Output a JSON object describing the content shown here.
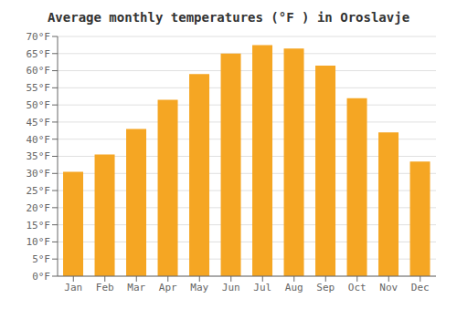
{
  "chart_data": {
    "type": "bar",
    "title": "Average monthly temperatures (°F ) in Oroslavje",
    "categories": [
      "Jan",
      "Feb",
      "Mar",
      "Apr",
      "May",
      "Jun",
      "Jul",
      "Aug",
      "Sep",
      "Oct",
      "Nov",
      "Dec"
    ],
    "values": [
      30.5,
      35.5,
      43,
      51.5,
      59,
      65,
      67.5,
      66.5,
      61.5,
      52,
      42,
      33.5
    ],
    "color": "#F5A623",
    "ylim": [
      0,
      70
    ],
    "yticks": [
      {
        "value": 0,
        "label": "0°F"
      },
      {
        "value": 5,
        "label": "5°F"
      },
      {
        "value": 10,
        "label": "10°F"
      },
      {
        "value": 15,
        "label": "15°F"
      },
      {
        "value": 20,
        "label": "20°F"
      },
      {
        "value": 25,
        "label": "25°F"
      },
      {
        "value": 30,
        "label": "30°F"
      },
      {
        "value": 35,
        "label": "35°F"
      },
      {
        "value": 40,
        "label": "40°F"
      },
      {
        "value": 45,
        "label": "45°F"
      },
      {
        "value": 50,
        "label": "50°F"
      },
      {
        "value": 55,
        "label": "55°F"
      },
      {
        "value": 60,
        "label": "60°F"
      },
      {
        "value": 65,
        "label": "65°F"
      },
      {
        "value": 70,
        "label": "70°F"
      }
    ],
    "grid": true
  }
}
